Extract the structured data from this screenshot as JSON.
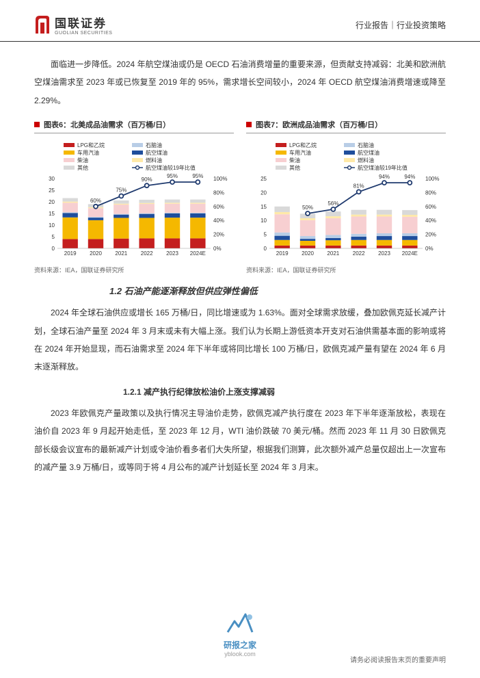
{
  "header": {
    "logo_zh": "国联证券",
    "logo_en": "GUOLIAN SECURITIES",
    "right": "行业报告｜行业投资策略",
    "logo_color": "#c41e1e"
  },
  "para1": "面临进一步降低。2024 年航空煤油或仍是 OECD 石油消费增量的重要来源，但贡献支持减弱：北美和欧洲航空煤油需求至 2023 年或已恢复至 2019 年的 95%，需求增长空间较小，2024 年 OECD 航空煤油消费增速或降至 2.29%。",
  "chart6": {
    "title": "图表6：北美成品油需求（百万桶/日）",
    "type": "stacked-bar-line",
    "categories": [
      "2019",
      "2020",
      "2021",
      "2022",
      "2023",
      "2024E"
    ],
    "series": {
      "LPG和乙烷": [
        4,
        4,
        4.2,
        4.3,
        4.3,
        4.3
      ],
      "车用汽油": [
        9.3,
        8.1,
        8.9,
        8.8,
        8.9,
        8.9
      ],
      "柴油": [
        4.1,
        3.8,
        4,
        4,
        3.9,
        3.9
      ],
      "其他": [
        1.5,
        1.3,
        1.4,
        1.4,
        1.4,
        1.4
      ],
      "石脑油": [
        0.3,
        0.3,
        0.3,
        0.3,
        0.3,
        0.3
      ],
      "航空煤油": [
        1.9,
        1.1,
        1.4,
        1.7,
        1.8,
        1.8
      ],
      "燃料油": [
        0.5,
        0.4,
        0.4,
        0.4,
        0.4,
        0.4
      ]
    },
    "colors": {
      "LPG和乙烷": "#c41e1e",
      "车用汽油": "#f5b800",
      "柴油": "#f7cfd1",
      "其他": "#d9d9d9",
      "石脑油": "#b8cde6",
      "航空煤油": "#1f4e9c",
      "燃料油": "#ffe9a8",
      "line": "#1f3a6e"
    },
    "line_label": "航空煤油较19年比值",
    "line_values": [
      null,
      60,
      75,
      90,
      95,
      95
    ],
    "ylim": [
      0,
      30
    ],
    "ytick": 5,
    "y2lim": [
      0,
      100
    ],
    "y2tick": 20,
    "bg": "#ffffff"
  },
  "chart7": {
    "title": "图表7：欧洲成品油需求（百万桶/日）",
    "type": "stacked-bar-line",
    "categories": [
      "2019",
      "2020",
      "2021",
      "2022",
      "2023",
      "2024E"
    ],
    "series": {
      "LPG和乙烷": [
        1,
        1,
        1,
        1,
        1,
        1
      ],
      "车用汽油": [
        2,
        1.7,
        1.9,
        2,
        2,
        2
      ],
      "柴油": [
        6.5,
        5.7,
        6,
        6.2,
        6,
        5.9
      ],
      "其他": [
        2,
        1.6,
        1.7,
        1.7,
        1.7,
        1.7
      ],
      "石脑油": [
        1.2,
        1,
        1.1,
        1,
        1,
        1
      ],
      "航空煤油": [
        1.5,
        0.7,
        0.8,
        1.2,
        1.4,
        1.4
      ],
      "燃料油": [
        0.8,
        0.7,
        0.7,
        0.7,
        0.7,
        0.7
      ]
    },
    "colors": {
      "LPG和乙烷": "#c41e1e",
      "车用汽油": "#f5b800",
      "柴油": "#f7cfd1",
      "其他": "#d9d9d9",
      "石脑油": "#b8cde6",
      "航空煤油": "#1f4e9c",
      "燃料油": "#ffe9a8",
      "line": "#1f3a6e"
    },
    "line_label": "航空煤油较19年比值",
    "line_values": [
      null,
      50,
      56,
      81,
      94,
      94
    ],
    "ylim": [
      0,
      25
    ],
    "ytick": 5,
    "y2lim": [
      0,
      100
    ],
    "y2tick": 20,
    "bg": "#ffffff"
  },
  "chart_source": "资料来源：IEA，国联证券研究所",
  "section_1_2": "1.2 石油产能逐渐释放但供应弹性偏低",
  "para2": "2024 年全球石油供应或增长 165 万桶/日，同比增速或为 1.63%。面对全球需求放缓，叠加欧佩克延长减产计划，全球石油产量至 2024 年 3 月末或未有大幅上涨。我们认为长期上游低资本开支对石油供需基本面的影响或将在 2024 年开始显现，而石油需求至 2024 年下半年或将同比增长 100 万桶/日，欧佩克减产量有望在 2024 年 6 月末逐渐释放。",
  "subsection_1_2_1": "1.2.1 减产执行纪律放松油价上涨支撑减弱",
  "para3": "2023 年欧佩克产量政策以及执行情况主导油价走势，欧佩克减产执行度在 2023 年下半年逐渐放松，表现在油价自 2023 年 9 月起开始走低，至 2023 年 12 月，WTI 油价跌破 70 美元/桶。然而 2023 年 11 月 30 日欧佩克部长级会议宣布的最新减产计划或令油价看多者们大失所望，根据我们测算，此次额外减产总量仅超出上一次宣布的减产量 3.9 万桶/日，或等同于将 4 月公布的减产计划延长至 2024 年 3 月末。",
  "footer": {
    "brand": "研报之家",
    "url": "yblook.com",
    "brand_color": "#2a7cb8"
  },
  "disclaimer": "请务必阅读报告末页的重要声明"
}
